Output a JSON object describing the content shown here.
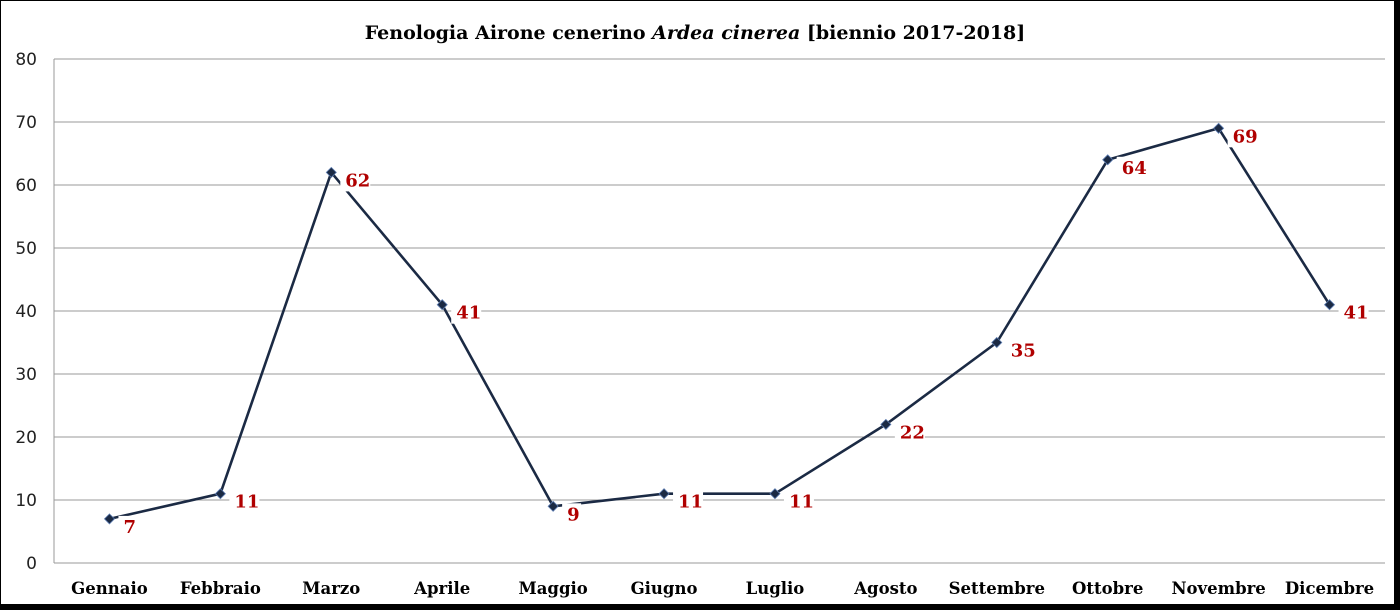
{
  "chart_data": {
    "type": "line",
    "title_parts": [
      {
        "text": "Fenologia Airone cenerino ",
        "italic": false
      },
      {
        "text": "Ardea cinerea",
        "italic": true
      },
      {
        "text": " [biennio 2017-2018]",
        "italic": false
      }
    ],
    "categories": [
      "Gennaio",
      "Febbraio",
      "Marzo",
      "Aprile",
      "Maggio",
      "Giugno",
      "Luglio",
      "Agosto",
      "Settembre",
      "Ottobre",
      "Novembre",
      "Dicembre"
    ],
    "series": [
      {
        "values": [
          7,
          11,
          62,
          41,
          9,
          11,
          11,
          22,
          35,
          64,
          69,
          41
        ],
        "color": "#1b2a44",
        "marker": "diamond",
        "label_color": "#b00000"
      }
    ],
    "ylim": [
      0,
      80
    ],
    "yticks": [
      0,
      10,
      20,
      30,
      40,
      50,
      60,
      70,
      80
    ],
    "grid": true,
    "xlabel": "",
    "ylabel": ""
  }
}
